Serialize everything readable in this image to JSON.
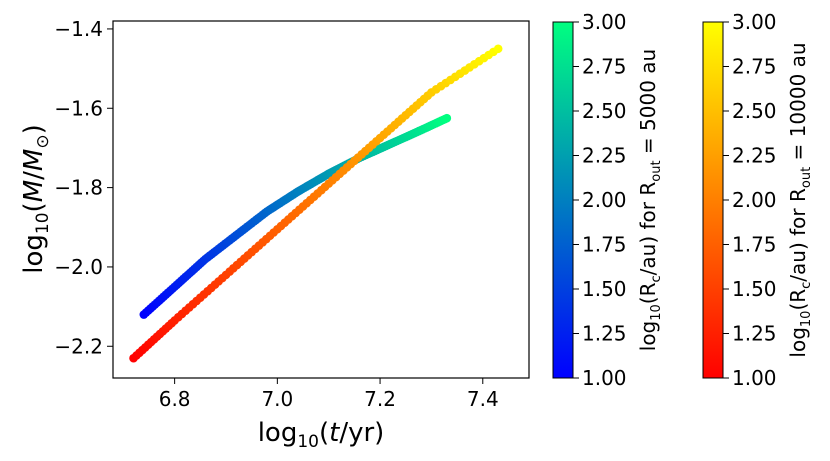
{
  "chart_data": {
    "type": "scatter",
    "xlabel": "log10(t/yr)",
    "ylabel": "log10(M/M⊙)",
    "xlim": [
      6.68,
      7.49
    ],
    "ylim": [
      -2.28,
      -1.38
    ],
    "xticks": [
      6.8,
      7.0,
      7.2,
      7.4
    ],
    "xtick_labels": [
      "6.8",
      "7.0",
      "7.2",
      "7.4"
    ],
    "yticks": [
      -2.2,
      -2.0,
      -1.8,
      -1.6,
      -1.4
    ],
    "ytick_labels": [
      "−2.2",
      "−2.0",
      "−1.8",
      "−1.6",
      "−1.4"
    ],
    "grid": false,
    "series": [
      {
        "name": "R_out = 5000 au",
        "colormap": "winter",
        "x": [
          6.74,
          6.8,
          6.86,
          6.92,
          6.98,
          7.04,
          7.1,
          7.16,
          7.22,
          7.28,
          7.33
        ],
        "y": [
          -2.12,
          -2.05,
          -1.98,
          -1.92,
          -1.86,
          -1.81,
          -1.765,
          -1.725,
          -1.69,
          -1.655,
          -1.625
        ],
        "color_value": [
          1.0,
          1.2,
          1.4,
          1.6,
          1.8,
          2.0,
          2.2,
          2.4,
          2.6,
          2.8,
          3.0
        ]
      },
      {
        "name": "R_out = 10000 au",
        "colormap": "autumn",
        "x": [
          6.72,
          6.8,
          6.9,
          7.0,
          7.1,
          7.2,
          7.3,
          7.43
        ],
        "y": [
          -2.23,
          -2.135,
          -2.02,
          -1.905,
          -1.79,
          -1.675,
          -1.56,
          -1.45
        ],
        "color_value": [
          1.0,
          1.25,
          1.5,
          1.75,
          2.0,
          2.3,
          2.6,
          3.0
        ]
      }
    ],
    "colorbars": [
      {
        "name": "winter",
        "label": "log10(Rc/au) for Rout = 5000 au",
        "ticks": [
          1.0,
          1.25,
          1.5,
          1.75,
          2.0,
          2.25,
          2.5,
          2.75,
          3.0
        ],
        "tick_labels": [
          "1.00",
          "1.25",
          "1.50",
          "1.75",
          "2.00",
          "2.25",
          "2.50",
          "2.75",
          "3.00"
        ],
        "colors": [
          "#0000ff",
          "#00ff80"
        ]
      },
      {
        "name": "autumn",
        "label": "log10(Rc/au) for Rout = 10000 au",
        "ticks": [
          1.0,
          1.25,
          1.5,
          1.75,
          2.0,
          2.25,
          2.5,
          2.75,
          3.0
        ],
        "tick_labels": [
          "1.00",
          "1.25",
          "1.50",
          "1.75",
          "2.00",
          "2.25",
          "2.50",
          "2.75",
          "3.00"
        ],
        "colors": [
          "#ff0000",
          "#ffff00"
        ]
      }
    ]
  }
}
